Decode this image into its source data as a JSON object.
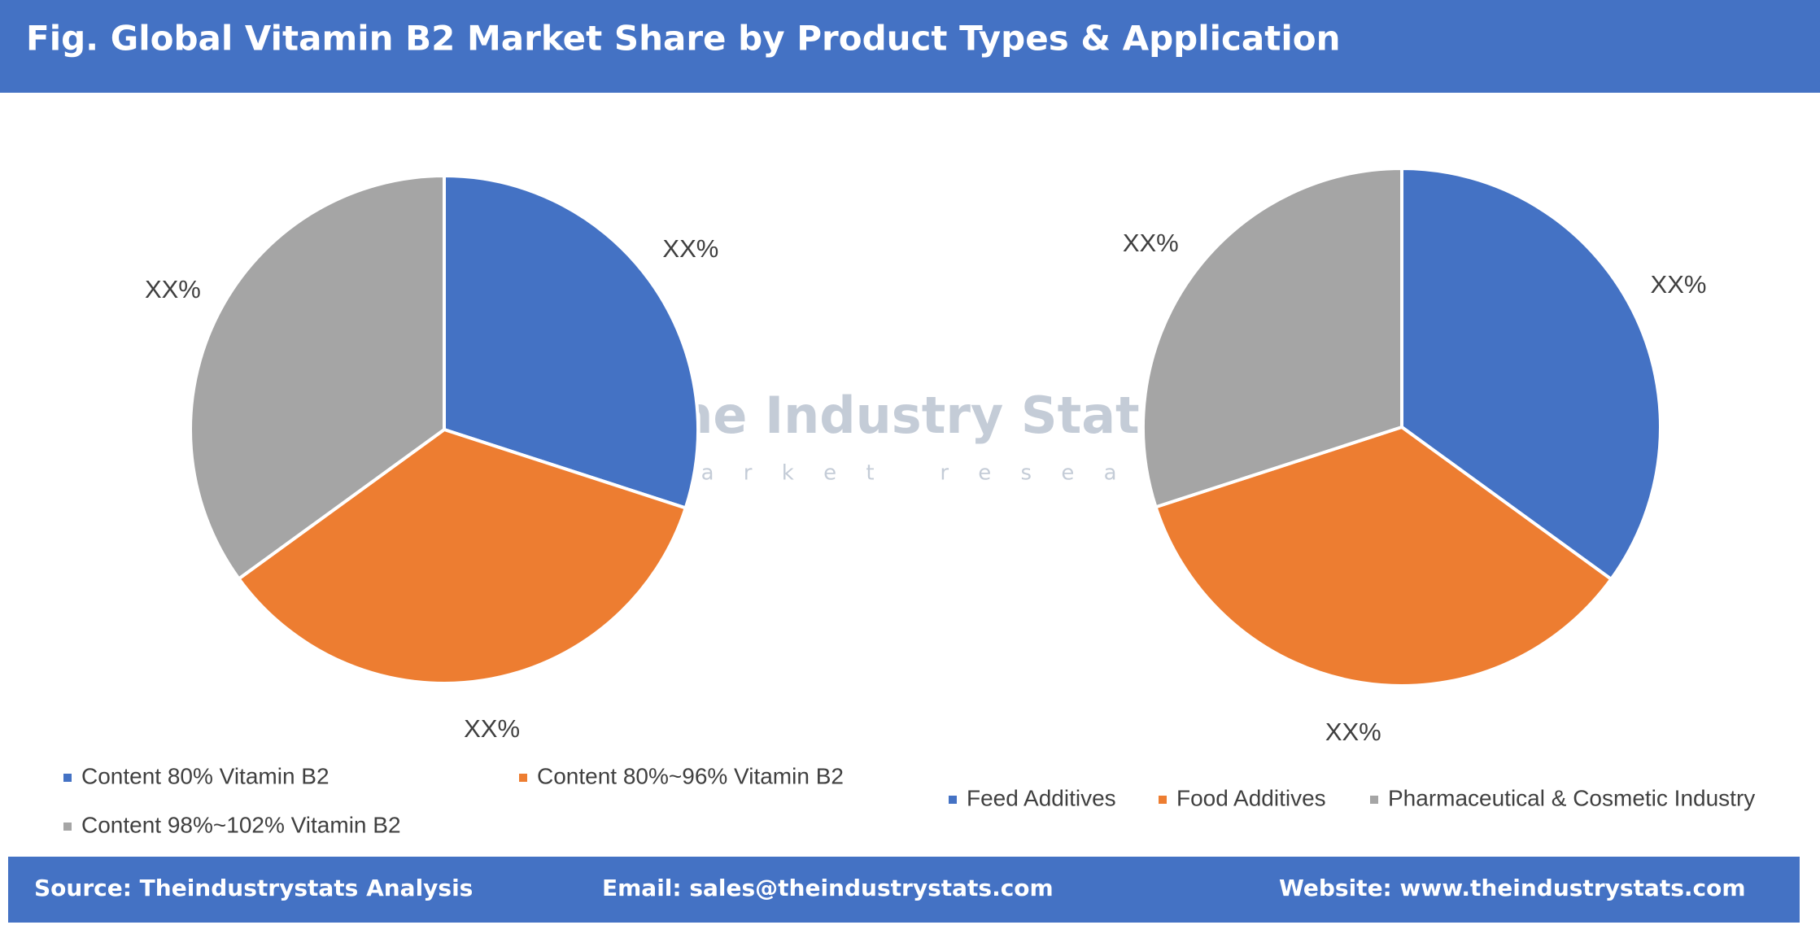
{
  "title": "Fig. Global Vitamin B2 Market Share by Product Types & Application",
  "chart_data": [
    {
      "type": "pie",
      "categories": [
        "Content 80% Vitamin B2",
        "Content 80%~96% Vitamin B2",
        "Content 98%~102% Vitamin B2"
      ],
      "values": [
        30,
        35,
        35
      ],
      "value_labels": [
        "XX%",
        "XX%",
        "XX%"
      ],
      "colors": [
        "#4472c4",
        "#ed7d31",
        "#a5a5a5"
      ]
    },
    {
      "type": "pie",
      "categories": [
        "Feed Additives",
        "Food Additives",
        "Pharmaceutical & Cosmetic Industry"
      ],
      "values": [
        35,
        35,
        30
      ],
      "value_labels": [
        "XX%",
        "XX%",
        "XX%"
      ],
      "colors": [
        "#4472c4",
        "#ed7d31",
        "#a5a5a5"
      ]
    }
  ],
  "watermark": {
    "name": "The Industry Stats",
    "tagline": "m a r k e t   r e s e a r c h"
  },
  "footer": {
    "source": "Source: Theindustrystats Analysis",
    "email": "Email: sales@theindustrystats.com",
    "website": "Website: www.theindustrystats.com"
  }
}
